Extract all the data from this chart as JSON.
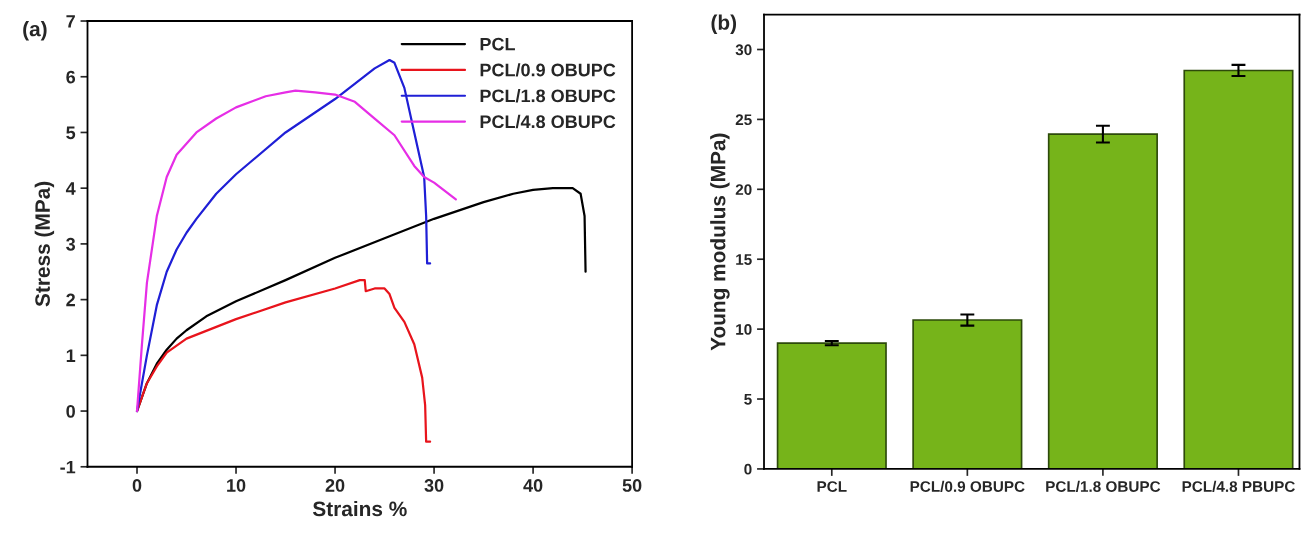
{
  "chart_data": [
    {
      "type": "line",
      "title": "(a)",
      "xlabel": "Strains %",
      "ylabel": "Stress (MPa)",
      "xlim": [
        -5,
        50
      ],
      "ylim": [
        -1,
        7
      ],
      "xticks": [
        0,
        10,
        20,
        30,
        40,
        50
      ],
      "yticks": [
        -1,
        0,
        1,
        2,
        3,
        4,
        5,
        6,
        7
      ],
      "legend": "top right",
      "grid": false,
      "series": [
        {
          "name": "PCL",
          "color": "#000000",
          "x": [
            0,
            1,
            2,
            3,
            4,
            5,
            7,
            10,
            15,
            20,
            25,
            30,
            35,
            38,
            40,
            42,
            44,
            44.8,
            45.2,
            45.3
          ],
          "values": [
            0,
            0.5,
            0.85,
            1.1,
            1.3,
            1.45,
            1.7,
            1.97,
            2.35,
            2.75,
            3.1,
            3.45,
            3.75,
            3.9,
            3.97,
            4.0,
            4.0,
            3.9,
            3.5,
            2.5
          ]
        },
        {
          "name": "PCL/0.9 OBUPC",
          "color": "#e8141c",
          "x": [
            0,
            1,
            2,
            3,
            5,
            10,
            15,
            20,
            22.5,
            23,
            23.1,
            24,
            25,
            25.5,
            26,
            27,
            28,
            28.8,
            29.1,
            29.2,
            29.6
          ],
          "values": [
            0,
            0.5,
            0.8,
            1.05,
            1.3,
            1.65,
            1.95,
            2.2,
            2.35,
            2.35,
            2.15,
            2.2,
            2.2,
            2.1,
            1.85,
            1.6,
            1.2,
            0.6,
            0.1,
            -0.55,
            -0.55
          ]
        },
        {
          "name": "PCL/1.8 OBUPC",
          "color": "#1f1fd6",
          "x": [
            0,
            1,
            2,
            3,
            4,
            5,
            6,
            8,
            10,
            15,
            20,
            24,
            25.5,
            26,
            27,
            28,
            29,
            29.2,
            29.3,
            29.6
          ],
          "values": [
            0,
            1.0,
            1.9,
            2.5,
            2.9,
            3.2,
            3.45,
            3.9,
            4.25,
            5.0,
            5.6,
            6.15,
            6.3,
            6.25,
            5.8,
            5.0,
            4.2,
            3.5,
            2.65,
            2.65
          ]
        },
        {
          "name": "PCL/4.8 OBUPC",
          "color": "#e62ee6",
          "x": [
            0,
            0.5,
            1,
            2,
            3,
            4,
            6,
            8,
            10,
            13,
            15,
            16,
            18,
            20,
            22,
            24,
            26,
            28,
            29,
            30,
            32.2
          ],
          "values": [
            0,
            1.2,
            2.3,
            3.5,
            4.2,
            4.6,
            5.0,
            5.25,
            5.45,
            5.65,
            5.72,
            5.75,
            5.72,
            5.68,
            5.55,
            5.25,
            4.95,
            4.4,
            4.2,
            4.1,
            3.8
          ]
        }
      ]
    },
    {
      "type": "bar",
      "title": "(b)",
      "ylabel": "Young modulus (MPa)",
      "categories": [
        "PCL",
        "PCL/0.9 OBUPC",
        "PCL/1.8 OBUPC",
        "PCL/4.8 PBUPC"
      ],
      "values": [
        9.0,
        10.65,
        23.95,
        28.5
      ],
      "errors": [
        0.15,
        0.4,
        0.6,
        0.4
      ],
      "color": "#76b41a",
      "ylim": [
        0,
        32.5
      ],
      "yticks": [
        0,
        5,
        10,
        15,
        20,
        25,
        30
      ],
      "grid": false
    }
  ]
}
